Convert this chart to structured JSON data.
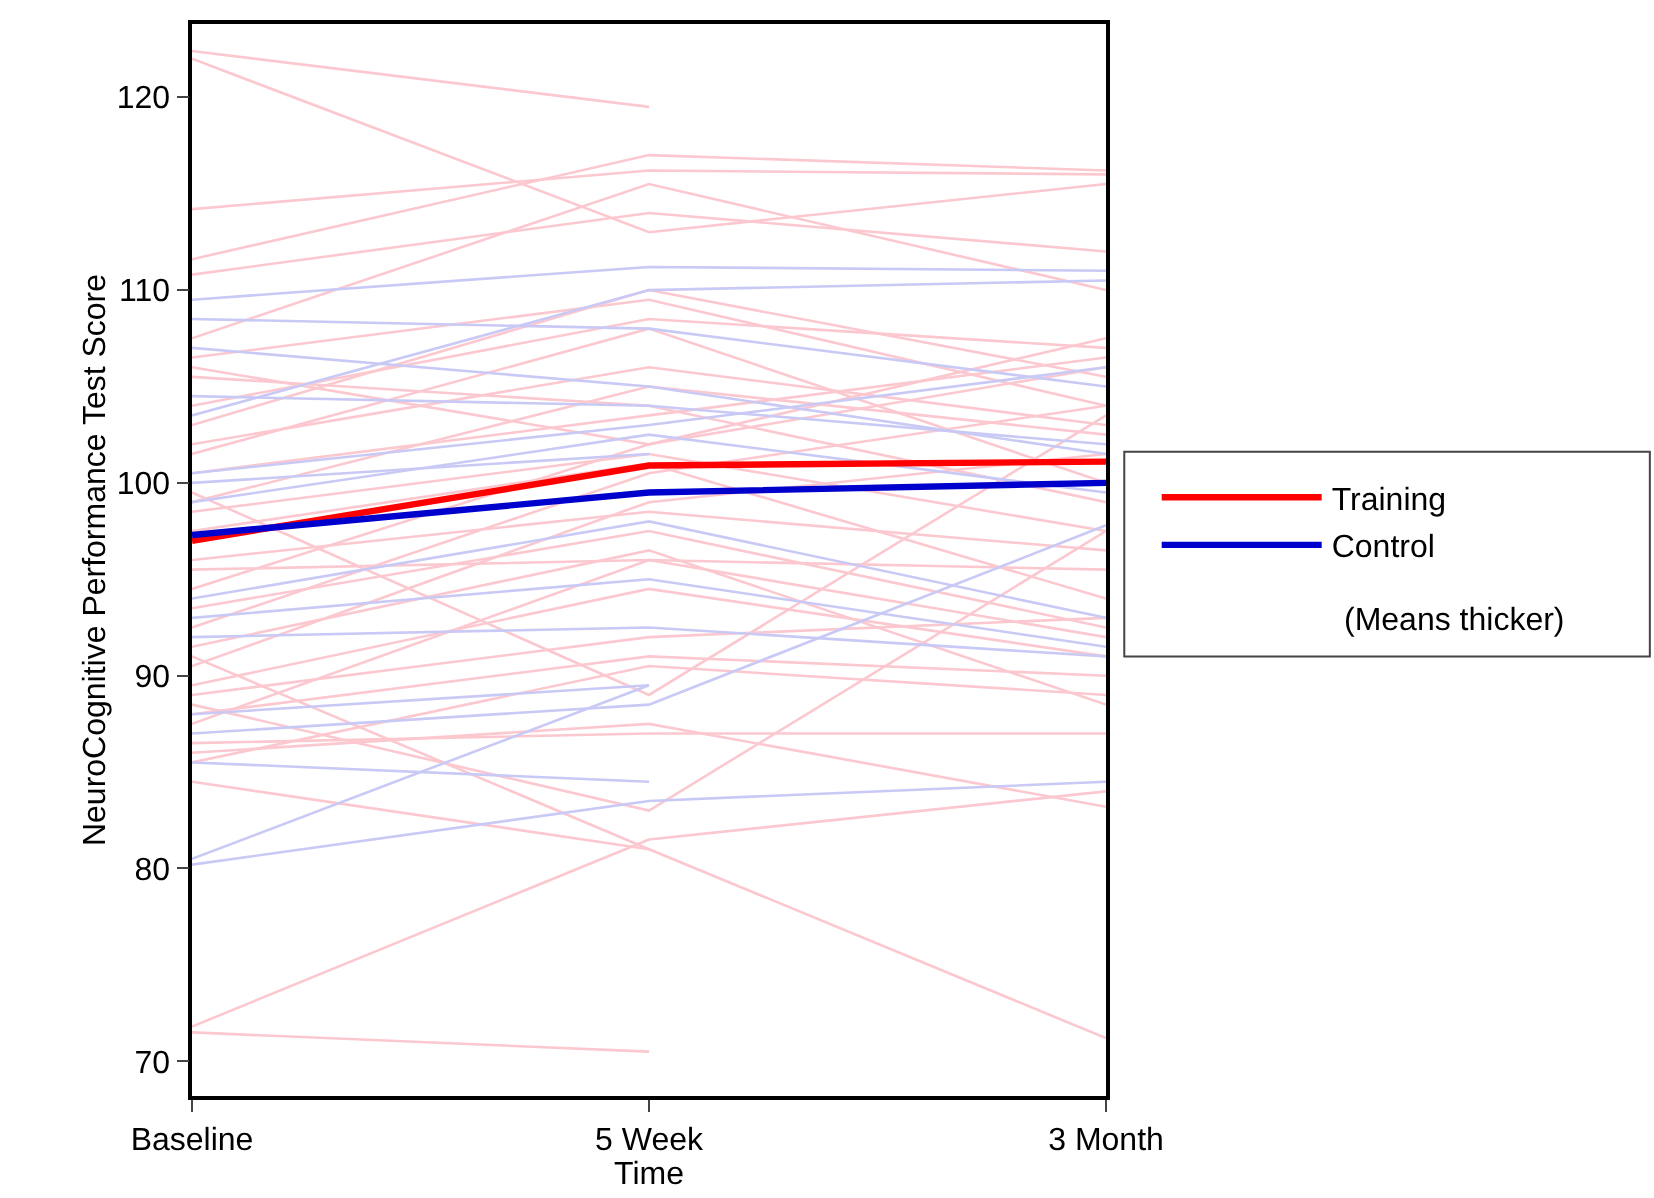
{
  "chart_data": {
    "type": "line",
    "xlabel": "Time",
    "ylabel": "NeuroCognitive Performance Test Score",
    "categories": [
      "Baseline",
      "5 Week",
      "3 Month"
    ],
    "ylim": [
      68.2,
      123.8
    ],
    "yticks": [
      70,
      80,
      90,
      100,
      110,
      120
    ],
    "grid": false,
    "legend": "right",
    "marker": "none",
    "line_style": "solid",
    "annotations": [
      "(Means thicker)"
    ],
    "series": [
      {
        "color": "#fcc8cf",
        "values": [
          122.4,
          119.5,
          null
        ]
      },
      {
        "color": "#fcc8cf",
        "values": [
          122.0,
          113.0,
          115.5
        ]
      },
      {
        "color": "#fcc8cf",
        "values": [
          114.2,
          116.2,
          116.0
        ]
      },
      {
        "color": "#fcc8cf",
        "values": [
          111.6,
          117.0,
          116.2
        ]
      },
      {
        "color": "#fcc8cf",
        "values": [
          110.8,
          114.0,
          112.0
        ]
      },
      {
        "color": "#fcc8cf",
        "values": [
          107.5,
          115.5,
          110.0
        ]
      },
      {
        "color": "#fcc8cf",
        "values": [
          106.5,
          109.5,
          104.0
        ]
      },
      {
        "color": "#fcc8cf",
        "values": [
          105.5,
          104.0,
          99.0
        ]
      },
      {
        "color": "#fcc8cf",
        "values": [
          104.0,
          108.5,
          107.0
        ]
      },
      {
        "color": "#fcc8cf",
        "values": [
          103.0,
          110.0,
          105.5
        ]
      },
      {
        "color": "#fcc8cf",
        "values": [
          102.0,
          106.0,
          103.0
        ]
      },
      {
        "color": "#fcc8cf",
        "values": [
          100.5,
          103.5,
          106.5
        ]
      },
      {
        "color": "#fcc8cf",
        "values": [
          99.0,
          105.0,
          102.5
        ]
      },
      {
        "color": "#fcc8cf",
        "values": [
          98.5,
          101.5,
          97.5
        ]
      },
      {
        "color": "#fcc8cf",
        "values": [
          96.0,
          98.5,
          96.5
        ]
      },
      {
        "color": "#fcc8cf",
        "values": [
          95.5,
          96.0,
          92.0
        ]
      },
      {
        "color": "#fcc8cf",
        "values": [
          94.5,
          102.0,
          106.0
        ]
      },
      {
        "color": "#fcc8cf",
        "values": [
          93.5,
          97.5,
          92.5
        ]
      },
      {
        "color": "#fcc8cf",
        "values": [
          92.5,
          100.5,
          104.0
        ]
      },
      {
        "color": "#fcc8cf",
        "values": [
          91.5,
          96.5,
          88.5
        ]
      },
      {
        "color": "#fcc8cf",
        "values": [
          90.5,
          99.0,
          101.5
        ]
      },
      {
        "color": "#fcc8cf",
        "values": [
          89.5,
          94.5,
          91.0
        ]
      },
      {
        "color": "#fcc8cf",
        "values": [
          89.0,
          92.0,
          93.0
        ]
      },
      {
        "color": "#fcc8cf",
        "values": [
          88.0,
          91.0,
          90.0
        ]
      },
      {
        "color": "#fcc8cf",
        "values": [
          87.5,
          96.0,
          95.5
        ]
      },
      {
        "color": "#fcc8cf",
        "values": [
          86.5,
          87.0,
          87.0
        ]
      },
      {
        "color": "#fcc8cf",
        "values": [
          85.5,
          90.5,
          89.0
        ]
      },
      {
        "color": "#fcc8cf",
        "values": [
          84.5,
          81.0,
          null
        ]
      },
      {
        "color": "#fcc8cf",
        "values": [
          88.5,
          83.0,
          97.5
        ]
      },
      {
        "color": "#fcc8cf",
        "values": [
          91.0,
          81.0,
          71.2
        ]
      },
      {
        "color": "#fcc8cf",
        "values": [
          86.0,
          87.5,
          83.2
        ]
      },
      {
        "color": "#fcc8cf",
        "values": [
          71.8,
          81.5,
          84.0
        ]
      },
      {
        "color": "#fcc8cf",
        "values": [
          71.5,
          70.5,
          null
        ]
      },
      {
        "color": "#fcc8cf",
        "values": [
          101.5,
          108.0,
          100.0
        ]
      },
      {
        "color": "#fcc8cf",
        "values": [
          97.5,
          101.0,
          94.0
        ]
      },
      {
        "color": "#fcc8cf",
        "values": [
          106.0,
          102.0,
          107.5
        ]
      },
      {
        "color": "#fcc8cf",
        "values": [
          99.5,
          89.0,
          103.5
        ]
      },
      {
        "color": "#c9c9f5",
        "values": [
          109.5,
          111.2,
          111.0
        ]
      },
      {
        "color": "#c9c9f5",
        "values": [
          108.5,
          108.0,
          105.0
        ]
      },
      {
        "color": "#c9c9f5",
        "values": [
          107.0,
          105.0,
          101.5
        ]
      },
      {
        "color": "#c9c9f5",
        "values": [
          104.5,
          104.0,
          102.0
        ]
      },
      {
        "color": "#c9c9f5",
        "values": [
          103.5,
          110.0,
          110.5
        ]
      },
      {
        "color": "#c9c9f5",
        "values": [
          100.5,
          103.0,
          106.0
        ]
      },
      {
        "color": "#c9c9f5",
        "values": [
          100.0,
          101.5,
          null
        ]
      },
      {
        "color": "#c9c9f5",
        "values": [
          99.0,
          102.5,
          99.5
        ]
      },
      {
        "color": "#c9c9f5",
        "values": [
          94.0,
          98.0,
          93.0
        ]
      },
      {
        "color": "#c9c9f5",
        "values": [
          93.0,
          95.0,
          91.5
        ]
      },
      {
        "color": "#c9c9f5",
        "values": [
          92.0,
          92.5,
          91.0
        ]
      },
      {
        "color": "#c9c9f5",
        "values": [
          88.0,
          89.5,
          null
        ]
      },
      {
        "color": "#c9c9f5",
        "values": [
          87.0,
          88.5,
          97.8
        ]
      },
      {
        "color": "#c9c9f5",
        "values": [
          85.5,
          84.5,
          null
        ]
      },
      {
        "color": "#c9c9f5",
        "values": [
          80.2,
          83.5,
          84.5
        ]
      },
      {
        "color": "#c9c9f5",
        "values": [
          80.5,
          89.5,
          null
        ]
      },
      {
        "name": "Training",
        "color": "#ff0000",
        "values": [
          97.0,
          100.9,
          101.1
        ]
      },
      {
        "name": "Control",
        "color": "#0000cc",
        "values": [
          97.3,
          99.5,
          100.0
        ]
      }
    ]
  }
}
